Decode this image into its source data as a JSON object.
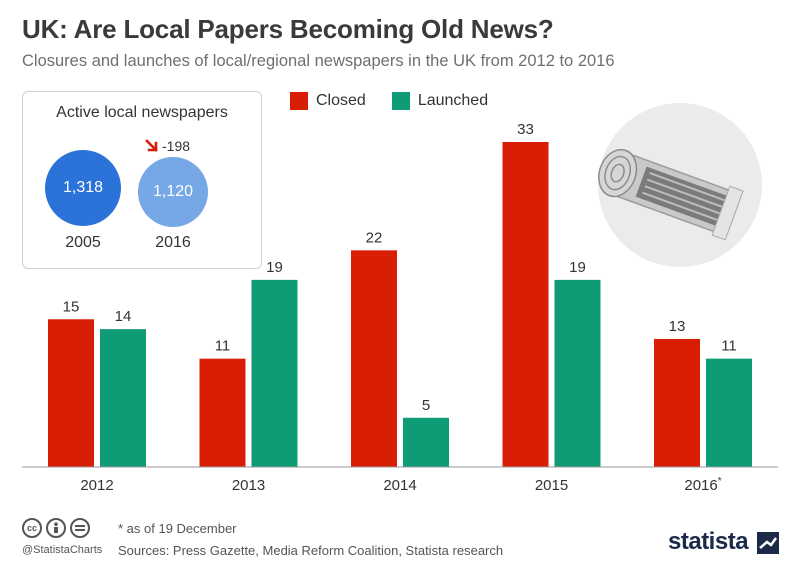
{
  "header": {
    "title": "UK: Are Local Papers Becoming Old News?",
    "subtitle": "Closures and launches of local/regional newspapers in the UK from 2012 to 2016"
  },
  "inset": {
    "title": "Active local newspapers",
    "first": {
      "value": "1,318",
      "year": "2005"
    },
    "second": {
      "value": "1,120",
      "year": "2016"
    },
    "change": "-198"
  },
  "chart_data": {
    "type": "bar",
    "categories": [
      "2012",
      "2013",
      "2014",
      "2015",
      "2016*"
    ],
    "series": [
      {
        "name": "Closed",
        "values": [
          15,
          11,
          22,
          33,
          13
        ],
        "color": "#d81e05"
      },
      {
        "name": "Launched",
        "values": [
          14,
          19,
          5,
          19,
          11
        ],
        "color": "#0f9b76"
      }
    ],
    "ylim": [
      0,
      33
    ],
    "grid": false,
    "legend_position": "top"
  },
  "footer": {
    "footnote": "* as of 19 December",
    "sources": "Sources: Press Gazette, Media Reform Coalition, Statista research",
    "handle": "@StatistaCharts",
    "brand": "statista"
  }
}
